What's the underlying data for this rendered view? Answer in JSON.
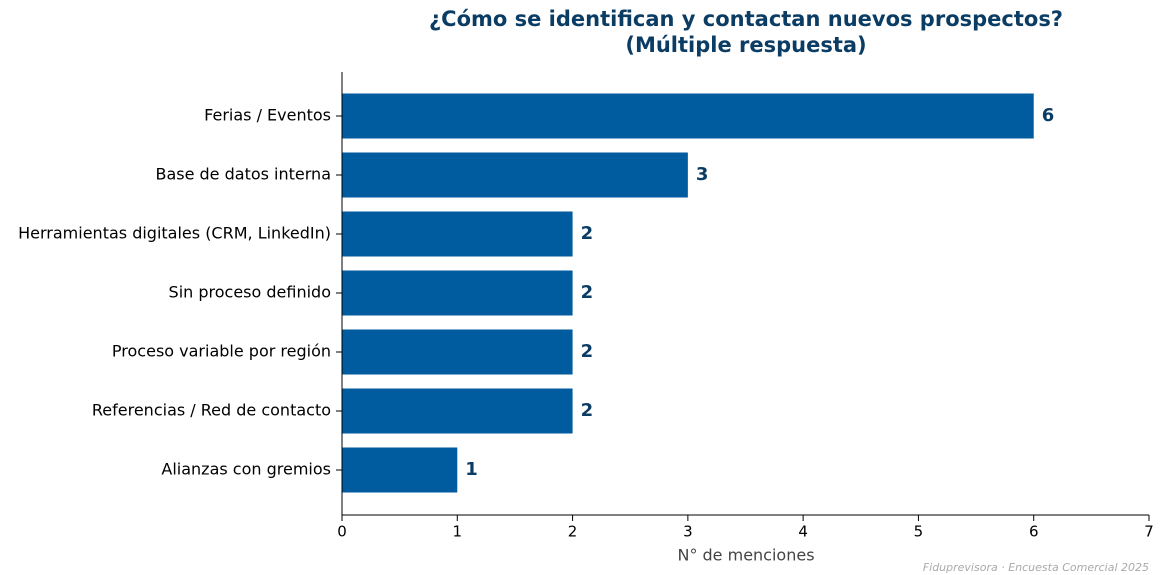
{
  "chart_data": {
    "type": "barh",
    "title": [
      "¿Cómo se identifican y contactan nuevos prospectos?",
      "(Múltiple respuesta)"
    ],
    "categories": [
      "Ferias / Eventos",
      "Base de datos interna",
      "Herramientas digitales (CRM, LinkedIn)",
      "Sin proceso definido",
      "Proceso variable por región",
      "Referencias / Red de contacto",
      "Alianzas con gremios"
    ],
    "values": [
      6,
      3,
      2,
      2,
      2,
      2,
      1
    ],
    "color": "#005b9f",
    "xlabel": "N° de menciones",
    "xlim": [
      0,
      7
    ],
    "xticks": [
      0,
      1,
      2,
      3,
      4,
      5,
      6,
      7
    ],
    "grid": false,
    "footnote": "Fiduprevisora · Encuesta Comercial 2025"
  }
}
